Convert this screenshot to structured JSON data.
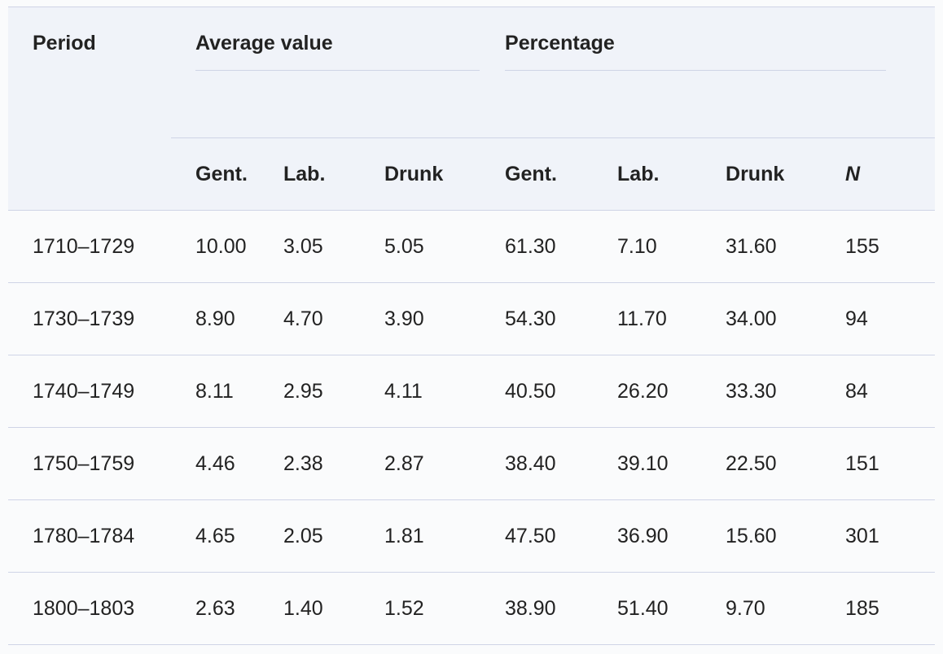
{
  "table": {
    "header": {
      "period": "Period",
      "group_average": "Average value",
      "group_percentage": "Percentage",
      "sub_columns": [
        "Gent.",
        "Lab.",
        "Drunk",
        "Gent.",
        "Lab.",
        "Drunk",
        "N"
      ]
    },
    "rows": [
      {
        "period": "1710–1729",
        "cells": [
          "10.00",
          "3.05",
          "5.05",
          "61.30",
          "7.10",
          "31.60",
          "155"
        ]
      },
      {
        "period": "1730–1739",
        "cells": [
          "8.90",
          "4.70",
          "3.90",
          "54.30",
          "11.70",
          "34.00",
          "94"
        ]
      },
      {
        "period": "1740–1749",
        "cells": [
          "8.11",
          "2.95",
          "4.11",
          "40.50",
          "26.20",
          "33.30",
          "84"
        ]
      },
      {
        "period": "1750–1759",
        "cells": [
          "4.46",
          "2.38",
          "2.87",
          "38.40",
          "39.10",
          "22.50",
          "151"
        ]
      },
      {
        "period": "1780–1784",
        "cells": [
          "4.65",
          "2.05",
          "1.81",
          "47.50",
          "36.90",
          "15.60",
          "301"
        ]
      },
      {
        "period": "1800–1803",
        "cells": [
          "2.63",
          "1.40",
          "1.52",
          "38.90",
          "51.40",
          "9.70",
          "185"
        ]
      }
    ]
  }
}
